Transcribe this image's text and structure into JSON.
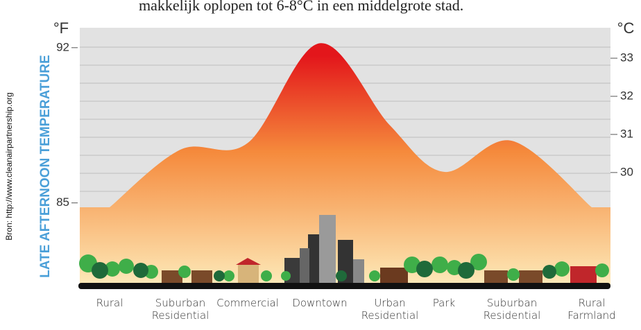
{
  "chart_data": {
    "type": "area",
    "caption": "makkelijk oplopen tot 6-8°C in een middelgrote stad.",
    "source": "Bron: http://www.cleanairpartnership.org",
    "ylabel": "LATE AFTERNOON TEMPERATURE",
    "yunit": "°F",
    "y2unit": "°C",
    "categories": [
      "Rural",
      "Suburban Residential",
      "Commercial",
      "Downtown",
      "Urban Residential",
      "Park",
      "Suburban Residential",
      "Rural Farmland"
    ],
    "values": [
      84.8,
      87.4,
      87.7,
      92.2,
      88.5,
      86.4,
      87.8,
      84.8
    ],
    "ylim": [
      81.3,
      92.9
    ],
    "yticks": [
      85,
      92
    ],
    "y2lim": [
      27.05,
      33.8
    ],
    "y2ticks": [
      30,
      31,
      32,
      33
    ],
    "colors": [
      "#e3161b",
      "#f58a3c",
      "#fde9b8"
    ]
  }
}
